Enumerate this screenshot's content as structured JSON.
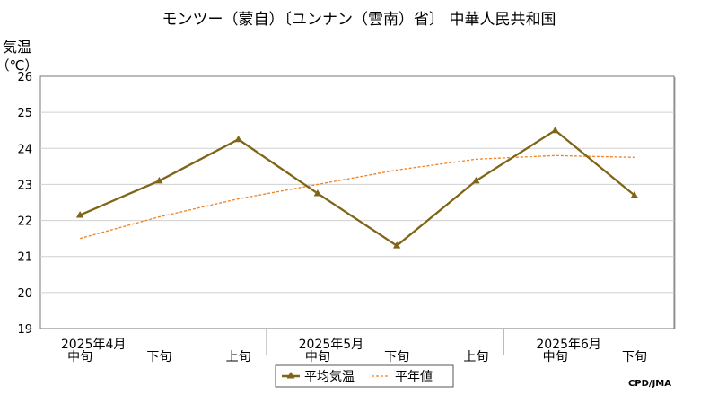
{
  "chart_data": {
    "type": "line",
    "title": "モンツー（蒙自）〔ユンナン（雲南）省〕 中華人民共和国",
    "ylabel": "気温",
    "yunit": "（℃）",
    "ylim": [
      19,
      26
    ],
    "yticks": [
      19,
      20,
      21,
      22,
      23,
      24,
      25,
      26
    ],
    "grid": true,
    "categories": [
      "中旬",
      "下旬",
      "上旬",
      "中旬",
      "下旬",
      "上旬",
      "中旬",
      "下旬"
    ],
    "month_labels": [
      {
        "label": "2025年4月",
        "index": 0
      },
      {
        "label": "2025年5月",
        "index": 3
      },
      {
        "label": "2025年6月",
        "index": 6
      }
    ],
    "series": [
      {
        "name": "平均気温",
        "color": "#7f6518",
        "style": "solid",
        "marker": "triangle",
        "values": [
          22.15,
          23.1,
          24.25,
          22.75,
          21.3,
          23.1,
          24.5,
          22.7
        ]
      },
      {
        "name": "平年値",
        "color": "#f08020",
        "style": "dotted",
        "marker": "none",
        "values": [
          21.5,
          22.1,
          22.6,
          23.0,
          23.4,
          23.7,
          23.8,
          23.75
        ]
      }
    ],
    "legend_position": "bottom-center",
    "credit": "CPD/JMA"
  }
}
